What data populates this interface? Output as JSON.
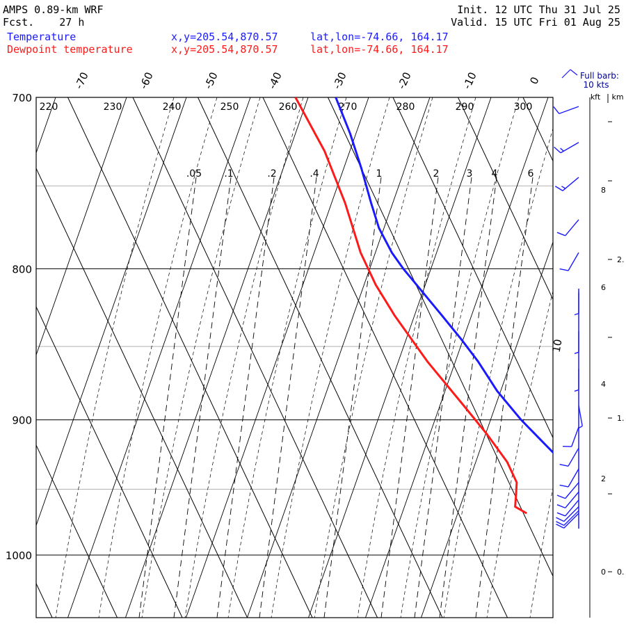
{
  "header": {
    "model": "AMPS 0.89-km WRF",
    "fcst": "Fcst.    27 h",
    "init": "Init. 12 UTC Thu 31 Jul 25",
    "valid": "Valid. 15 UTC Fri 01 Aug 25",
    "temp_label": "Temperature",
    "temp_xy": "x,y=205.54,870.57",
    "temp_latlon": "lat,lon=-74.66, 164.17",
    "dew_label": "Dewpoint temperature",
    "dew_xy": "x,y=205.54,870.57",
    "dew_latlon": "lat,lon=-74.66, 164.17"
  },
  "barb_legend": {
    "line1": "Full barb:",
    "line2": "10 kts"
  },
  "height_units": {
    "kft": "kft",
    "km": "km"
  },
  "colors": {
    "temperature": "#1a1aff",
    "dewpoint": "#ff1a1a",
    "grid": "#000000",
    "minor_isobar": "#b0b0b0"
  },
  "chart_data": {
    "type": "line",
    "subtype": "skew-T log-p sounding",
    "pressure_levels_hPa": [
      700,
      800,
      900,
      1000
    ],
    "minor_isobars_hPa": [
      750,
      850,
      950
    ],
    "pressure_range_hPa": [
      700,
      1040
    ],
    "isotherm_labels_C": [
      -70,
      -60,
      -50,
      -40,
      -30,
      -20,
      -10,
      0,
      10
    ],
    "dry_adiabat_labels_K": [
      220,
      230,
      240,
      250,
      260,
      270,
      280,
      290,
      300
    ],
    "mixing_ratio_labels_gkg": [
      ".05",
      ".1",
      ".2",
      ".4",
      "1",
      "2",
      "3",
      "4",
      "6"
    ],
    "series": [
      {
        "name": "Temperature",
        "pressure": [
          700,
          720,
          740,
          760,
          775,
          790,
          800,
          815,
          830,
          845,
          860,
          880,
          900,
          920,
          940,
          955,
          965,
          968
        ],
        "values": [
          -28.8,
          -29.2,
          -30.0,
          -31.0,
          -31.6,
          -31.4,
          -30.8,
          -29.5,
          -28.2,
          -27.0,
          -26.0,
          -25.2,
          -23.6,
          -21.4,
          -19.2,
          -17.5,
          -16.6,
          -16.1
        ]
      },
      {
        "name": "Dewpoint temperature",
        "pressure": [
          700,
          730,
          760,
          790,
          810,
          830,
          860,
          890,
          910,
          930,
          945,
          955,
          963,
          968
        ],
        "values": [
          -35.0,
          -34.4,
          -35.0,
          -36.2,
          -36.2,
          -35.5,
          -33.8,
          -31.4,
          -29.9,
          -28.8,
          -28.8,
          -29.9,
          -30.8,
          -29.5
        ]
      }
    ],
    "height_scale_kft": [
      0,
      2,
      4,
      6,
      8
    ],
    "height_scale_km": [
      "0.",
      "1.",
      "2."
    ],
    "wind_barbs": {
      "pressure": [
        705,
        725,
        745,
        770,
        790,
        815,
        840,
        865,
        890,
        905,
        920,
        935,
        945,
        952,
        958,
        963,
        966,
        968
      ],
      "speed_kts": [
        10,
        15,
        15,
        10,
        10,
        5,
        5,
        5,
        5,
        10,
        10,
        10,
        10,
        10,
        10,
        10,
        10,
        10
      ],
      "direction_deg": [
        250,
        240,
        230,
        220,
        210,
        180,
        180,
        180,
        170,
        200,
        210,
        210,
        220,
        220,
        220,
        225,
        225,
        225
      ]
    }
  }
}
